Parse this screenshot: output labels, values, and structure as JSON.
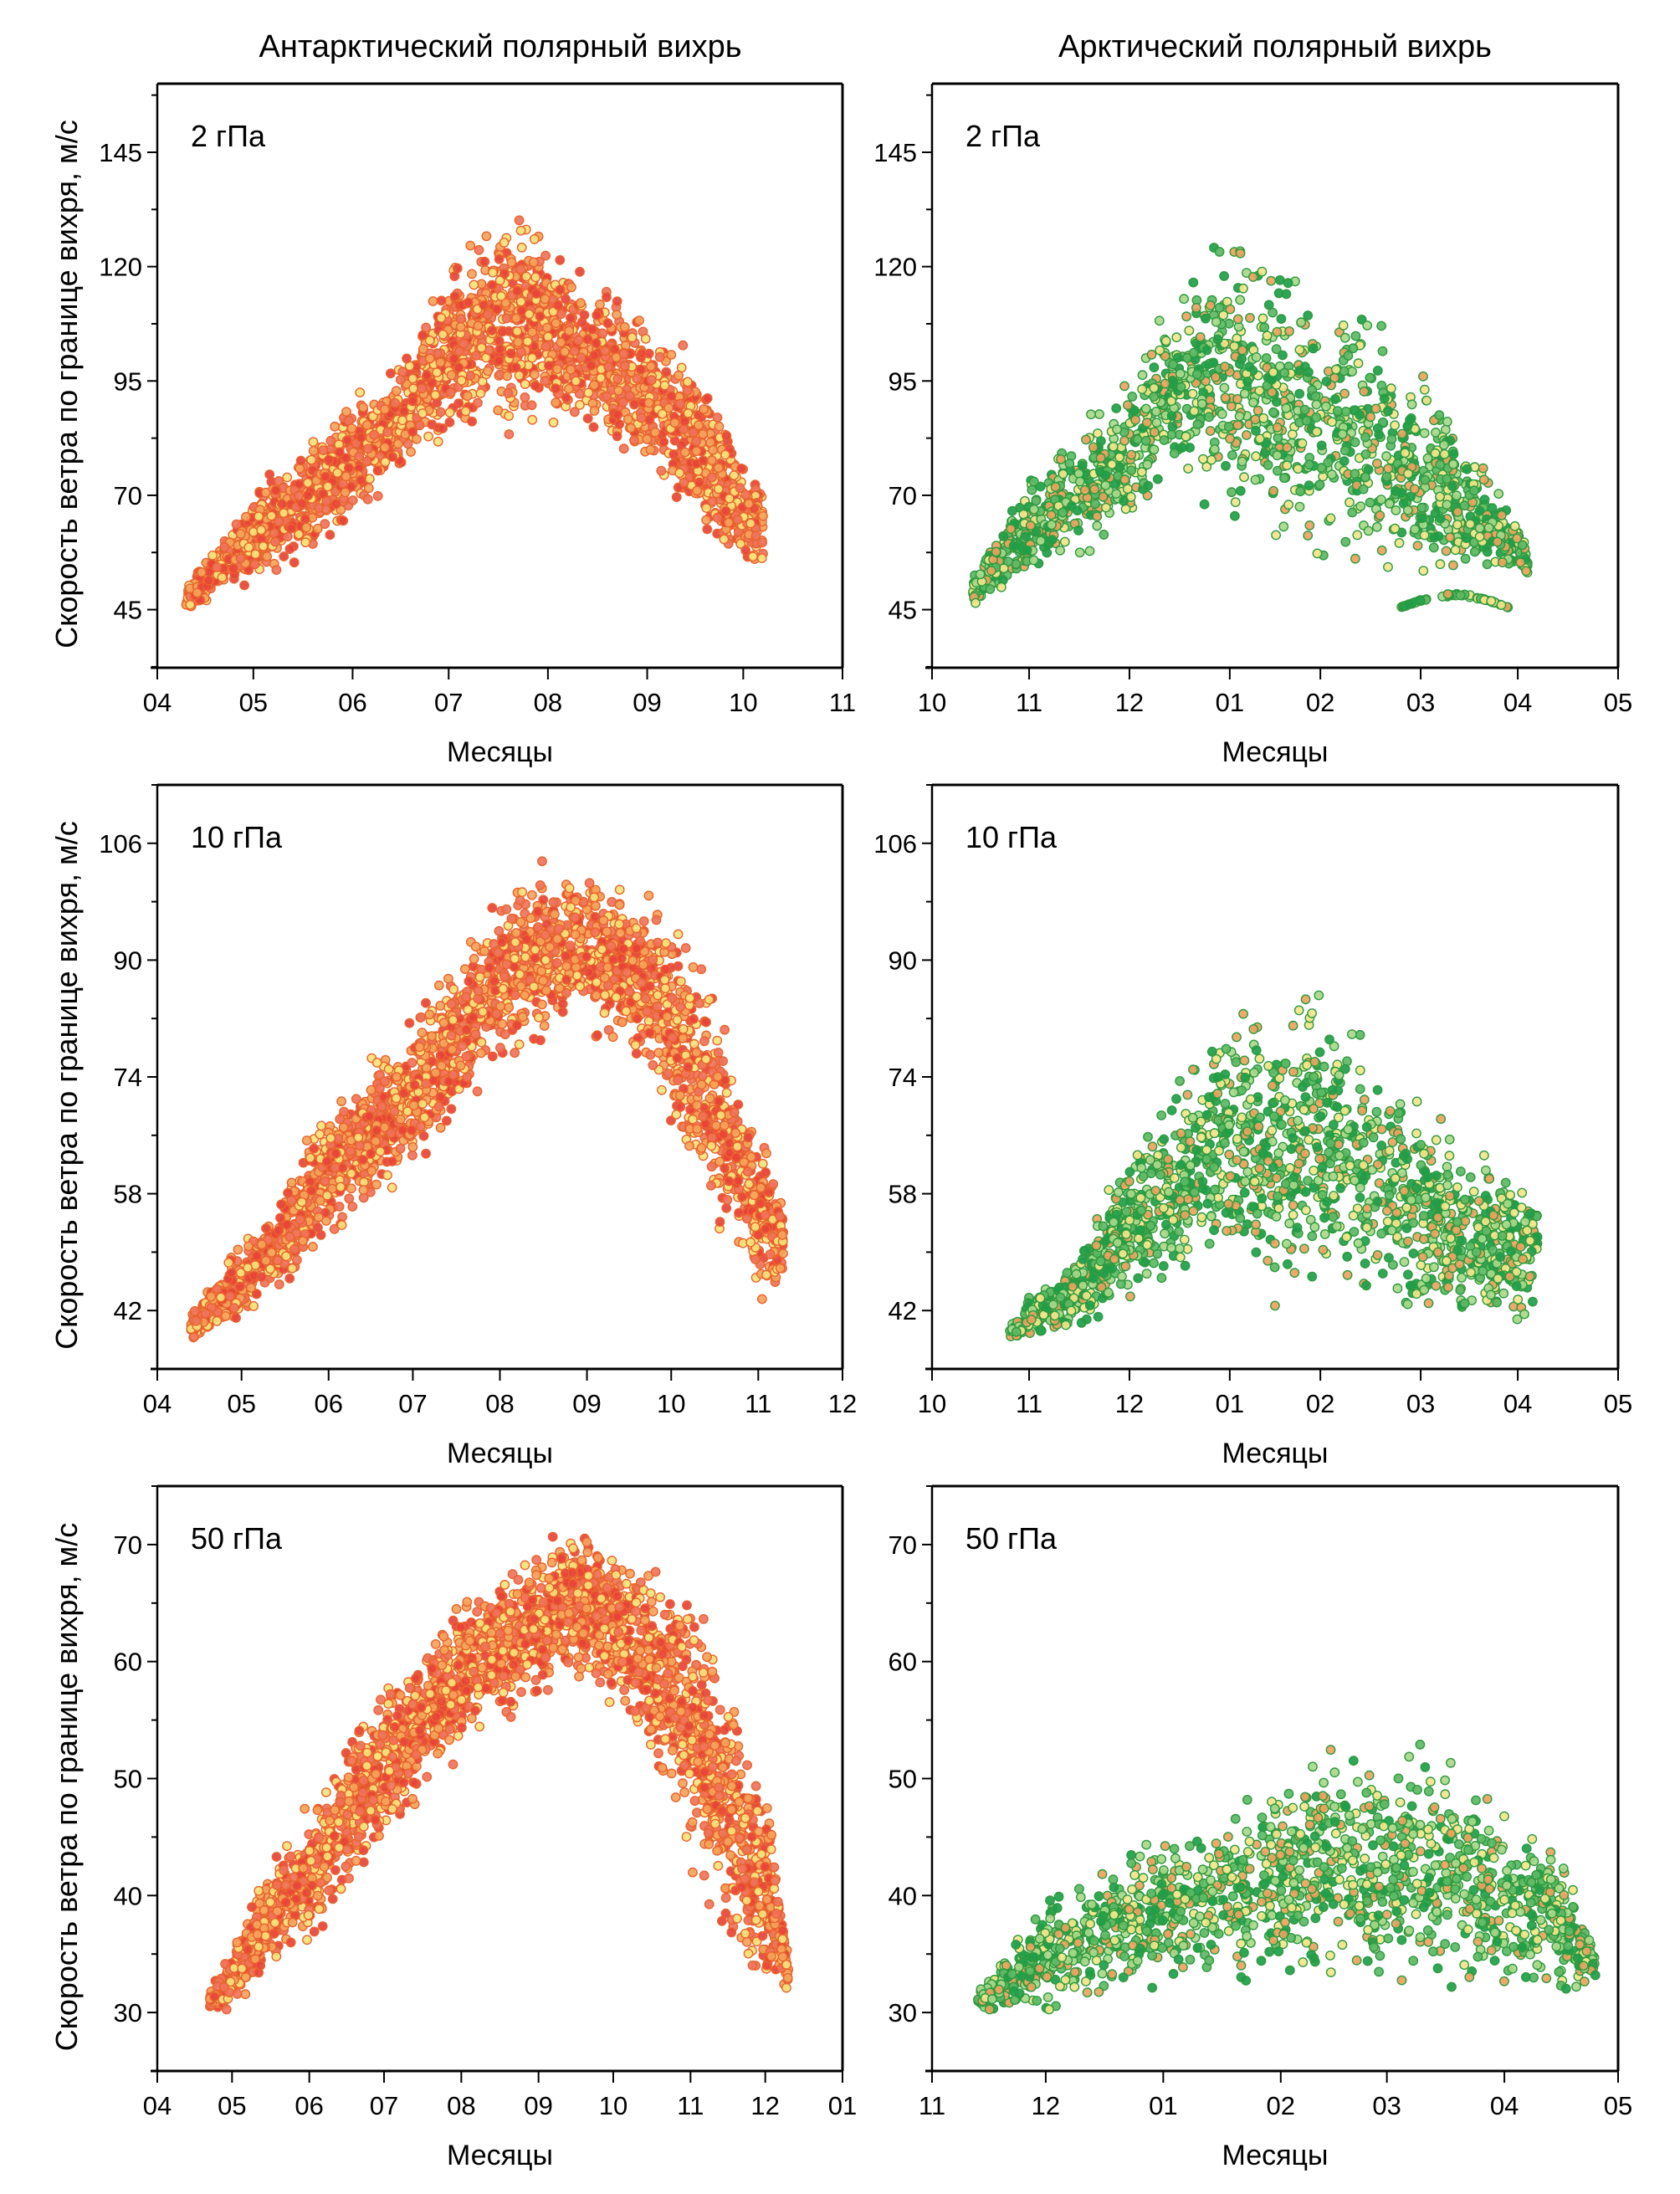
{
  "figure": {
    "column_titles": [
      "Антарктический полярный вихрь",
      "Арктический полярный вихрь"
    ],
    "ylabel": "Скорость ветра по границе вихря, м/с",
    "xlabel": "Месяцы"
  },
  "chart_data": [
    {
      "type": "scatter",
      "id": "antarctic-2hpa",
      "column": "Антарктический полярный вихрь",
      "panel_label": "2 гПа",
      "xlabel": "Месяцы",
      "ylabel": "Скорость ветра по границе вихря, м/с",
      "x_ticks": [
        "04",
        "05",
        "06",
        "07",
        "08",
        "09",
        "10",
        "11"
      ],
      "x_month_days": [
        30,
        31,
        30,
        31,
        31,
        30,
        31
      ],
      "y_ticks": [
        45,
        70,
        95,
        120,
        145
      ],
      "y_minor_step": 12.5,
      "ylim": [
        32.3,
        160
      ],
      "palette": [
        "#e8423a",
        "#f0735c",
        "#f5a35a",
        "#f9e27a"
      ],
      "edge_color": "#e8642e",
      "point_count": 2600,
      "envelope": [
        {
          "x": 0.3,
          "y": [
            45,
            50
          ]
        },
        {
          "x": 1.0,
          "y": [
            50,
            72
          ]
        },
        {
          "x": 2.0,
          "y": [
            63,
            92
          ]
        },
        {
          "x": 2.5,
          "y": [
            75,
            100
          ]
        },
        {
          "x": 3.0,
          "y": [
            80,
            122
          ]
        },
        {
          "x": 3.5,
          "y": [
            82,
            135
          ]
        },
        {
          "x": 4.0,
          "y": [
            86,
            128
          ]
        },
        {
          "x": 4.5,
          "y": [
            82,
            118
          ]
        },
        {
          "x": 5.0,
          "y": [
            72,
            112
          ]
        },
        {
          "x": 5.5,
          "y": [
            62,
            100
          ]
        },
        {
          "x": 6.0,
          "y": [
            52,
            80
          ]
        },
        {
          "x": 6.2,
          "y": [
            52,
            75
          ]
        }
      ]
    },
    {
      "type": "scatter",
      "id": "arctic-2hpa",
      "column": "Арктический полярный вихрь",
      "panel_label": "2 гПа",
      "xlabel": "Месяцы",
      "ylabel": "",
      "x_ticks": [
        "10",
        "11",
        "12",
        "01",
        "02",
        "03",
        "04",
        "05"
      ],
      "x_month_days": [
        30,
        31,
        31,
        28,
        31,
        30,
        31
      ],
      "y_ticks": [
        45,
        70,
        95,
        120,
        145
      ],
      "y_minor_step": 12.5,
      "ylim": [
        32.3,
        160
      ],
      "palette": [
        "#1e9e4a",
        "#5cb865",
        "#a8d88a",
        "#eaa35e",
        "#f3e58a"
      ],
      "edge_color": "#2f9a3f",
      "point_count": 1500,
      "envelope": [
        {
          "x": 0.4,
          "y": [
            45,
            52
          ]
        },
        {
          "x": 1.0,
          "y": [
            50,
            75
          ]
        },
        {
          "x": 1.5,
          "y": [
            55,
            85
          ]
        },
        {
          "x": 2.0,
          "y": [
            62,
            100
          ]
        },
        {
          "x": 2.5,
          "y": [
            70,
            118
          ]
        },
        {
          "x": 3.0,
          "y": [
            62,
            130
          ]
        },
        {
          "x": 3.5,
          "y": [
            58,
            122
          ]
        },
        {
          "x": 4.0,
          "y": [
            56,
            118
          ]
        },
        {
          "x": 4.5,
          "y": [
            52,
            112
          ]
        },
        {
          "x": 5.0,
          "y": [
            50,
            100
          ]
        },
        {
          "x": 5.5,
          "y": [
            52,
            82
          ]
        },
        {
          "x": 6.0,
          "y": [
            52,
            65
          ]
        },
        {
          "x": 6.1,
          "y": [
            52,
            60
          ]
        }
      ],
      "extra_cluster": {
        "x": [
          4.8,
          5.9
        ],
        "y": [
          45.5,
          48.5
        ],
        "count": 60
      }
    },
    {
      "type": "scatter",
      "id": "antarctic-10hpa",
      "column": "Антарктический полярный вихрь",
      "panel_label": "10 гПа",
      "xlabel": "Месяцы",
      "ylabel": "Скорость ветра по границе вихря, м/с",
      "x_ticks": [
        "04",
        "05",
        "06",
        "07",
        "08",
        "09",
        "10",
        "11",
        "12"
      ],
      "x_month_days": [
        30,
        31,
        30,
        31,
        31,
        30,
        31,
        30
      ],
      "y_ticks": [
        42,
        58,
        74,
        90,
        106
      ],
      "y_minor_step": 8,
      "ylim": [
        34,
        114
      ],
      "palette": [
        "#e8423a",
        "#f0735c",
        "#f5a35a",
        "#f9e27a"
      ],
      "edge_color": "#e8642e",
      "point_count": 2600,
      "envelope": [
        {
          "x": 0.4,
          "y": [
            38,
            42
          ]
        },
        {
          "x": 1.0,
          "y": [
            40,
            52
          ]
        },
        {
          "x": 1.5,
          "y": [
            44,
            60
          ]
        },
        {
          "x": 2.0,
          "y": [
            50,
            72
          ]
        },
        {
          "x": 2.5,
          "y": [
            55,
            77
          ]
        },
        {
          "x": 3.0,
          "y": [
            60,
            83
          ]
        },
        {
          "x": 3.5,
          "y": [
            66,
            92
          ]
        },
        {
          "x": 4.0,
          "y": [
            75,
            100
          ]
        },
        {
          "x": 4.5,
          "y": [
            78,
            104
          ]
        },
        {
          "x": 5.0,
          "y": [
            80,
            104
          ]
        },
        {
          "x": 5.5,
          "y": [
            78,
            100
          ]
        },
        {
          "x": 6.0,
          "y": [
            66,
            97
          ]
        },
        {
          "x": 6.5,
          "y": [
            52,
            88
          ]
        },
        {
          "x": 7.0,
          "y": [
            42,
            70
          ]
        },
        {
          "x": 7.3,
          "y": [
            46,
            56
          ]
        }
      ]
    },
    {
      "type": "scatter",
      "id": "arctic-10hpa",
      "column": "Арктический полярный вихрь",
      "panel_label": "10 гПа",
      "xlabel": "Месяцы",
      "ylabel": "",
      "x_ticks": [
        "10",
        "11",
        "12",
        "01",
        "02",
        "03",
        "04",
        "05"
      ],
      "x_month_days": [
        30,
        31,
        31,
        28,
        31,
        30,
        31
      ],
      "y_ticks": [
        42,
        58,
        74,
        90,
        106
      ],
      "y_minor_step": 8,
      "ylim": [
        34,
        114
      ],
      "palette": [
        "#1e9e4a",
        "#5cb865",
        "#a8d88a",
        "#eaa35e",
        "#f3e58a"
      ],
      "edge_color": "#2f9a3f",
      "point_count": 1600,
      "envelope": [
        {
          "x": 0.8,
          "y": [
            38,
            40
          ]
        },
        {
          "x": 1.0,
          "y": [
            38,
            44
          ]
        },
        {
          "x": 1.5,
          "y": [
            38,
            52
          ]
        },
        {
          "x": 2.0,
          "y": [
            42,
            65
          ]
        },
        {
          "x": 2.5,
          "y": [
            44,
            75
          ]
        },
        {
          "x": 3.0,
          "y": [
            46,
            86
          ]
        },
        {
          "x": 3.5,
          "y": [
            42,
            86
          ]
        },
        {
          "x": 4.0,
          "y": [
            42,
            90
          ]
        },
        {
          "x": 4.5,
          "y": [
            40,
            80
          ]
        },
        {
          "x": 5.0,
          "y": [
            40,
            72
          ]
        },
        {
          "x": 5.5,
          "y": [
            38,
            66
          ]
        },
        {
          "x": 6.0,
          "y": [
            38,
            62
          ]
        },
        {
          "x": 6.2,
          "y": [
            44,
            60
          ]
        }
      ]
    },
    {
      "type": "scatter",
      "id": "antarctic-50hpa",
      "column": "Антарктический полярный вихрь",
      "panel_label": "50 гПа",
      "xlabel": "Месяцы",
      "ylabel": "Скорость ветра по границе вихря, м/с",
      "x_ticks": [
        "04",
        "05",
        "06",
        "07",
        "08",
        "09",
        "10",
        "11",
        "12",
        "01"
      ],
      "x_month_days": [
        30,
        31,
        30,
        31,
        31,
        30,
        31,
        30,
        31
      ],
      "y_ticks": [
        30,
        40,
        50,
        60,
        70
      ],
      "y_minor_step": 5,
      "ylim": [
        25,
        75
      ],
      "palette": [
        "#e8423a",
        "#f0735c",
        "#f5a35a",
        "#f9e27a"
      ],
      "edge_color": "#e8642e",
      "point_count": 2800,
      "envelope": [
        {
          "x": 0.7,
          "y": [
            30,
            32
          ]
        },
        {
          "x": 1.0,
          "y": [
            30,
            36
          ]
        },
        {
          "x": 1.5,
          "y": [
            33,
            44
          ]
        },
        {
          "x": 2.0,
          "y": [
            35,
            48
          ]
        },
        {
          "x": 2.5,
          "y": [
            40,
            54
          ]
        },
        {
          "x": 3.0,
          "y": [
            44,
            58
          ]
        },
        {
          "x": 3.5,
          "y": [
            48,
            62
          ]
        },
        {
          "x": 4.0,
          "y": [
            52,
            66
          ]
        },
        {
          "x": 4.5,
          "y": [
            54,
            68
          ]
        },
        {
          "x": 5.0,
          "y": [
            56,
            70
          ]
        },
        {
          "x": 5.5,
          "y": [
            58,
            72
          ]
        },
        {
          "x": 6.0,
          "y": [
            56,
            71
          ]
        },
        {
          "x": 6.5,
          "y": [
            50,
            69
          ]
        },
        {
          "x": 7.0,
          "y": [
            42,
            68
          ]
        },
        {
          "x": 7.5,
          "y": [
            34,
            60
          ]
        },
        {
          "x": 8.0,
          "y": [
            30,
            52
          ]
        },
        {
          "x": 8.3,
          "y": [
            32,
            35
          ]
        }
      ]
    },
    {
      "type": "scatter",
      "id": "arctic-50hpa",
      "column": "Арктический полярный вихрь",
      "panel_label": "50 гПа",
      "xlabel": "Месяцы",
      "ylabel": "",
      "x_ticks": [
        "11",
        "12",
        "01",
        "02",
        "03",
        "04",
        "05"
      ],
      "x_month_days": [
        30,
        31,
        31,
        28,
        31,
        30
      ],
      "y_ticks": [
        30,
        40,
        50,
        60,
        70
      ],
      "y_minor_step": 5,
      "ylim": [
        25,
        75
      ],
      "palette": [
        "#1e9e4a",
        "#5cb865",
        "#a8d88a",
        "#eaa35e",
        "#f3e58a"
      ],
      "edge_color": "#2f9a3f",
      "point_count": 1500,
      "envelope": [
        {
          "x": 0.4,
          "y": [
            30,
            32
          ]
        },
        {
          "x": 1.0,
          "y": [
            30,
            40
          ]
        },
        {
          "x": 1.5,
          "y": [
            31,
            43
          ]
        },
        {
          "x": 2.0,
          "y": [
            32,
            46
          ]
        },
        {
          "x": 2.5,
          "y": [
            32,
            48
          ]
        },
        {
          "x": 3.0,
          "y": [
            32,
            52
          ]
        },
        {
          "x": 3.5,
          "y": [
            31,
            56
          ]
        },
        {
          "x": 4.0,
          "y": [
            31,
            52
          ]
        },
        {
          "x": 4.5,
          "y": [
            31,
            54
          ]
        },
        {
          "x": 5.0,
          "y": [
            30,
            48
          ]
        },
        {
          "x": 5.5,
          "y": [
            31,
            45
          ]
        },
        {
          "x": 5.8,
          "y": [
            33,
            35
          ]
        }
      ]
    }
  ]
}
